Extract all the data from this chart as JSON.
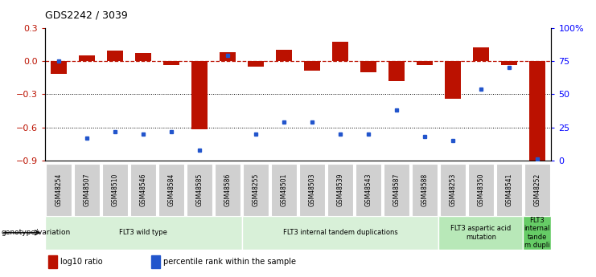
{
  "title": "GDS2242 / 3039",
  "samples": [
    "GSM48254",
    "GSM48507",
    "GSM48510",
    "GSM48546",
    "GSM48584",
    "GSM48585",
    "GSM48586",
    "GSM48255",
    "GSM48501",
    "GSM48503",
    "GSM48539",
    "GSM48543",
    "GSM48587",
    "GSM48588",
    "GSM48253",
    "GSM48350",
    "GSM48541",
    "GSM48252"
  ],
  "log10_ratio": [
    -0.12,
    0.05,
    0.09,
    0.07,
    -0.04,
    -0.62,
    0.08,
    -0.05,
    0.1,
    -0.09,
    0.17,
    -0.1,
    -0.18,
    -0.04,
    -0.34,
    0.12,
    -0.04,
    -0.93
  ],
  "percentile_rank": [
    75,
    17,
    22,
    20,
    22,
    8,
    79,
    20,
    29,
    29,
    20,
    20,
    38,
    18,
    15,
    54,
    70,
    1
  ],
  "groups": [
    {
      "label": "FLT3 wild type",
      "start": 0,
      "end": 6,
      "color": "#d8f0d8"
    },
    {
      "label": "FLT3 internal tandem duplications",
      "start": 7,
      "end": 13,
      "color": "#d8f0d8"
    },
    {
      "label": "FLT3 aspartic acid\nmutation",
      "start": 14,
      "end": 16,
      "color": "#b8e8b8"
    },
    {
      "label": "FLT3\ninternal\ntande\nm dupli",
      "start": 17,
      "end": 17,
      "color": "#66cc66"
    }
  ],
  "ylim_left": [
    -0.9,
    0.3
  ],
  "ylim_right": [
    0,
    100
  ],
  "yticks_left": [
    -0.9,
    -0.6,
    -0.3,
    0.0,
    0.3
  ],
  "yticks_right": [
    0,
    25,
    50,
    75,
    100
  ],
  "ytick_labels_right": [
    "0",
    "25",
    "50",
    "75",
    "100%"
  ],
  "dotted_lines": [
    -0.3,
    -0.6
  ],
  "bar_color": "#bb1100",
  "dot_color": "#2255cc",
  "bar_width": 0.55,
  "legend_items": [
    {
      "color": "#bb1100",
      "label": "log10 ratio"
    },
    {
      "color": "#2255cc",
      "label": "percentile rank within the sample"
    }
  ],
  "genotype_label": "genotype/variation",
  "background_color": "#ffffff"
}
